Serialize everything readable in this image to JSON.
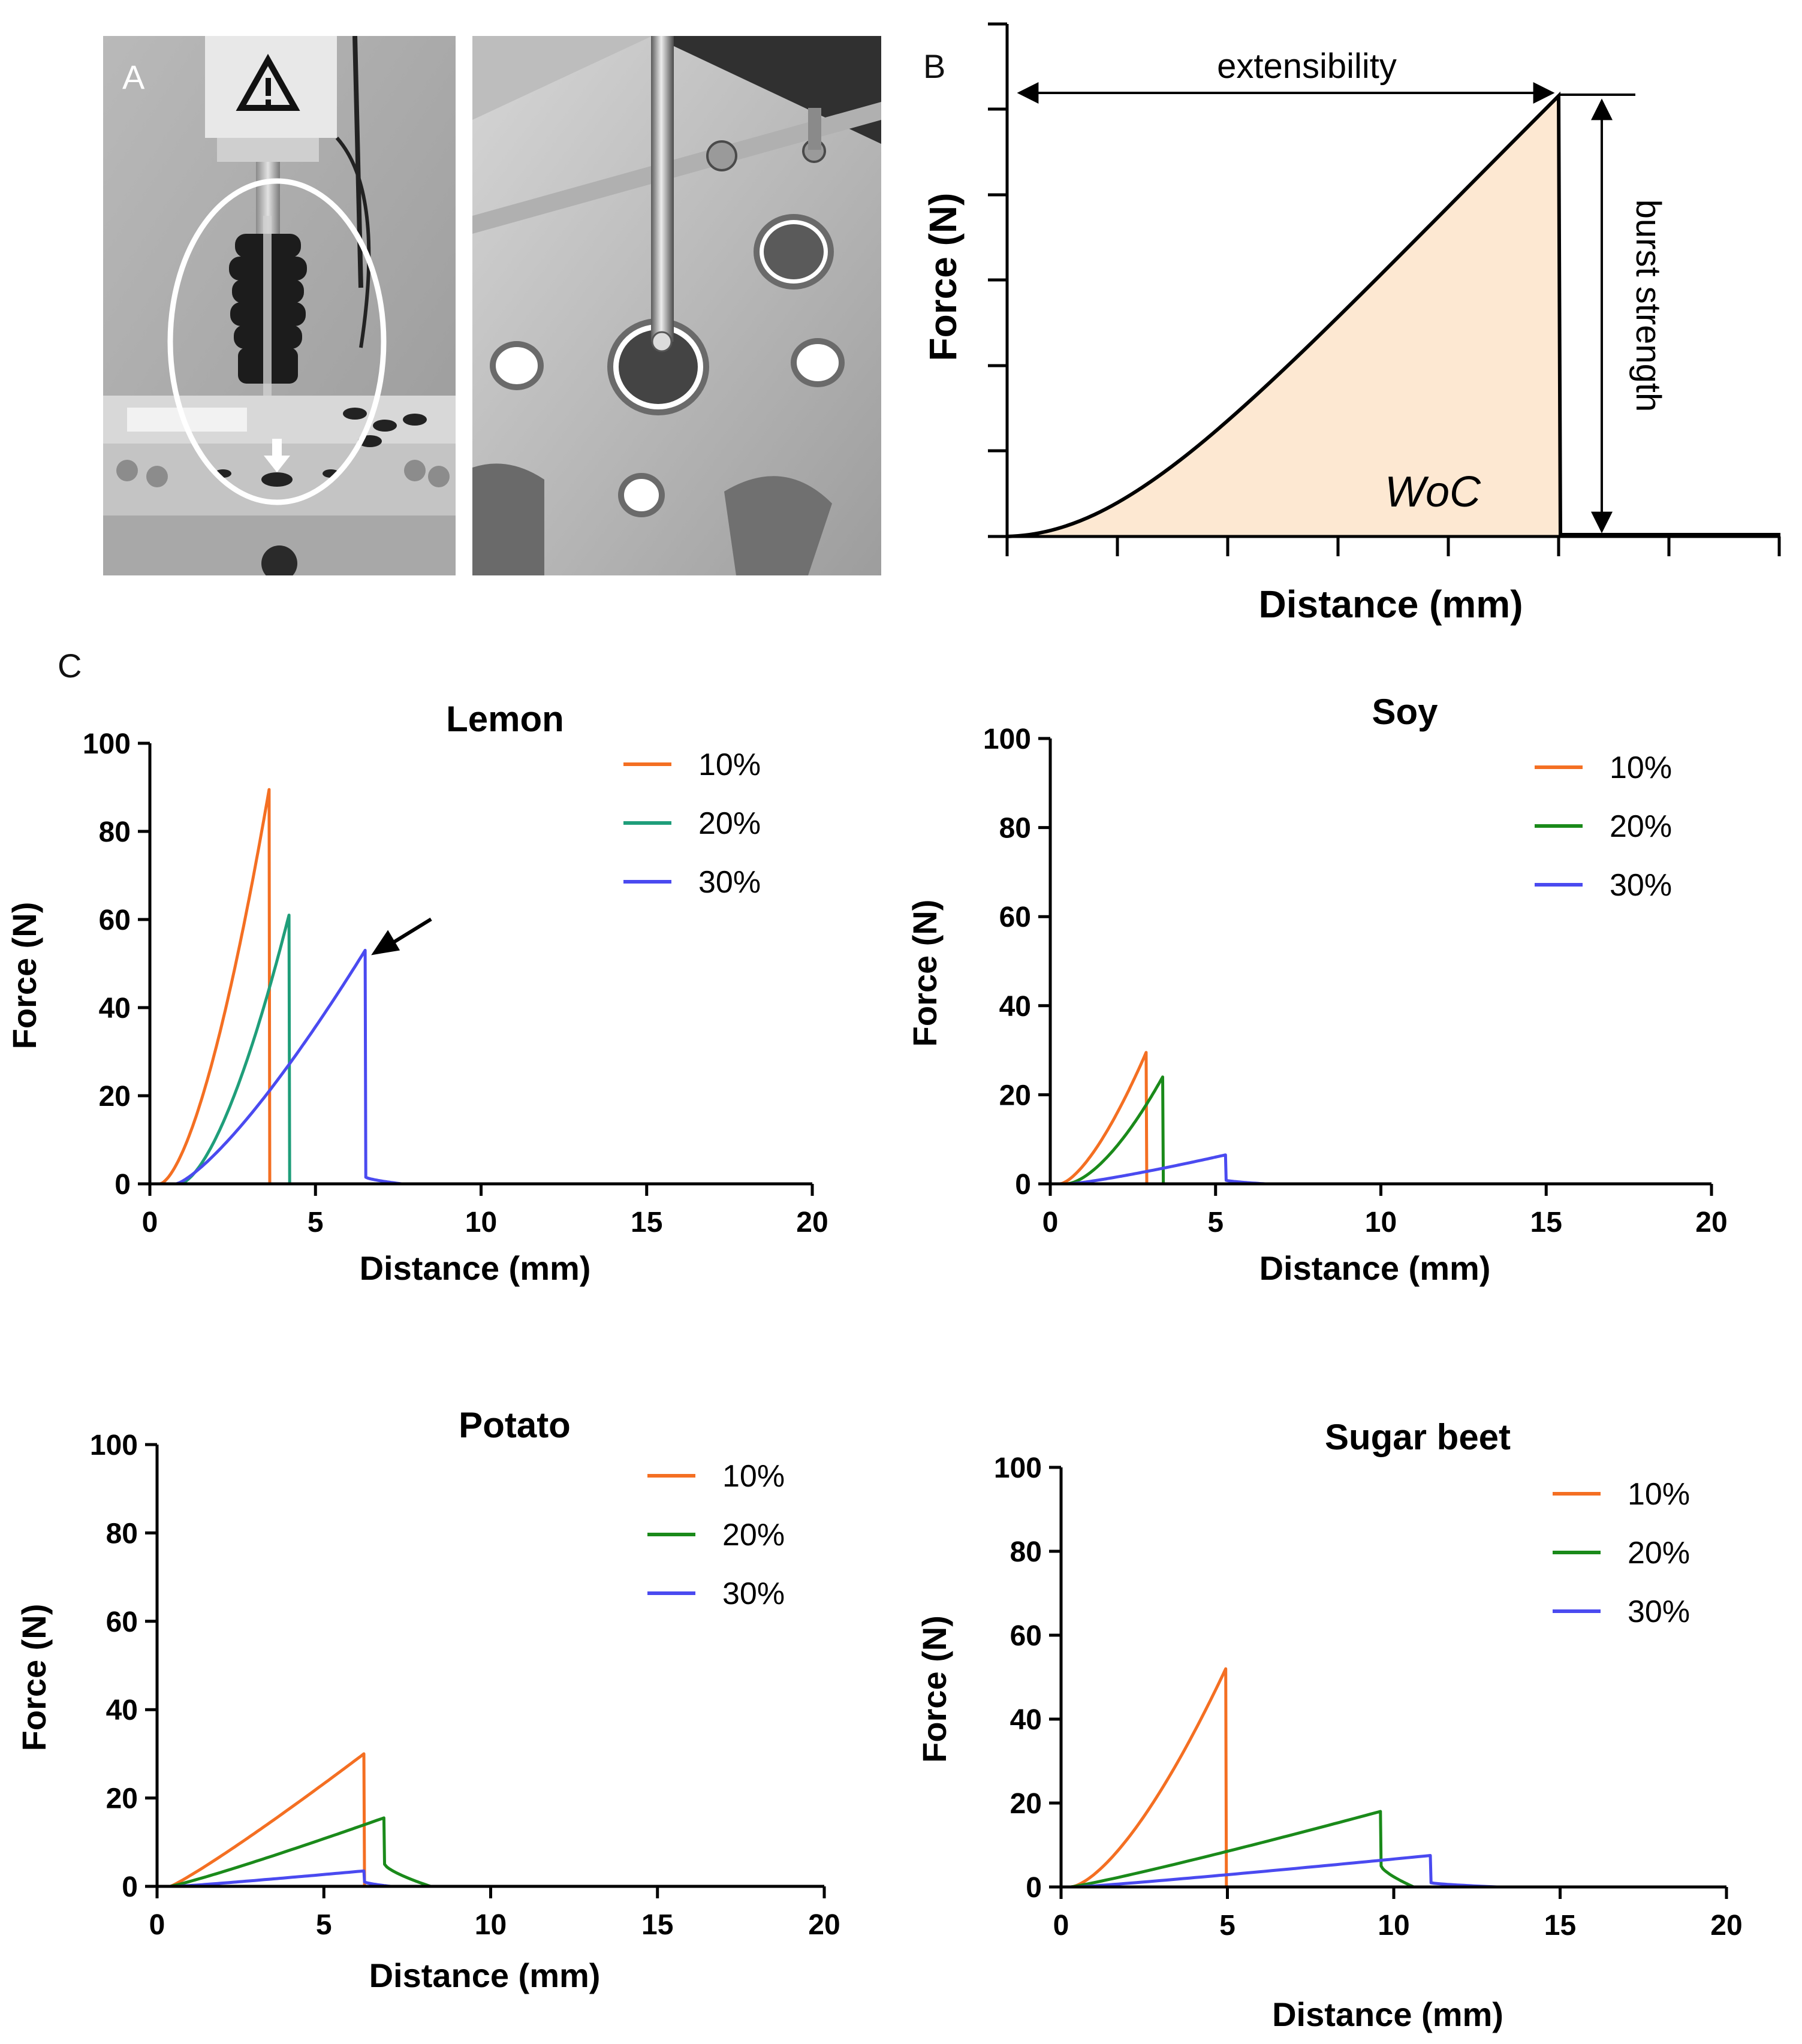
{
  "panels": {
    "a": "A",
    "b": "B",
    "c": "C"
  },
  "panel_b": {
    "type": "schematic-line",
    "ylabel": "Force (N)",
    "xlabel": "Distance (mm)",
    "extensibility_label": "extensibility",
    "burst_label": "burst strength",
    "woc_label": "WoC",
    "fill_color": "#fde8d2",
    "curve_color": "#000000"
  },
  "chart_data": [
    {
      "type": "line",
      "title": "Lemon",
      "xlabel": "Distance (mm)",
      "ylabel": "Force (N)",
      "xlim": [
        0,
        20
      ],
      "ylim": [
        0,
        100
      ],
      "xticks": [
        0,
        5,
        10,
        15,
        20
      ],
      "yticks": [
        0,
        20,
        40,
        60,
        80,
        100
      ],
      "legend_position": "top-right",
      "series": [
        {
          "name": "10%",
          "color": "#f46f22",
          "start": 0,
          "onset": 0.3,
          "peak_x": 3.6,
          "peak_y": 89.5,
          "drop_to": 0,
          "tail_x": 3.8,
          "end_x": 15.2,
          "exponent": 1.6
        },
        {
          "name": "20%",
          "color": "#1f9e7a",
          "start": 0,
          "onset": 0.9,
          "peak_x": 4.2,
          "peak_y": 61,
          "drop_to": 0,
          "tail_x": 4.4,
          "end_x": 8.5,
          "exponent": 1.6
        },
        {
          "name": "30%",
          "color": "#4a4af0",
          "start": 0,
          "onset": 0.8,
          "peak_x": 6.5,
          "peak_y": 53,
          "drop_to": 1.5,
          "tail_x": 7.6,
          "end_x": 8.0,
          "exponent": 1.3
        }
      ],
      "annotation": "arrow pointing to 30% peak"
    },
    {
      "type": "line",
      "title": "Soy",
      "xlabel": "Distance (mm)",
      "ylabel": "Force (N)",
      "xlim": [
        0,
        20
      ],
      "ylim": [
        0,
        100
      ],
      "xticks": [
        0,
        5,
        10,
        15,
        20
      ],
      "yticks": [
        0,
        20,
        40,
        60,
        80,
        100
      ],
      "legend_position": "top-right",
      "series": [
        {
          "name": "10%",
          "color": "#f46f22",
          "start": 0,
          "onset": 0.3,
          "peak_x": 2.9,
          "peak_y": 29.5,
          "drop_to": 0,
          "tail_x": 3.1,
          "end_x": 15.2,
          "exponent": 1.5
        },
        {
          "name": "20%",
          "color": "#1a8a1a",
          "start": 0,
          "onset": 0.5,
          "peak_x": 3.4,
          "peak_y": 24,
          "drop_to": 0,
          "tail_x": 3.6,
          "end_x": 8.0,
          "exponent": 1.6
        },
        {
          "name": "30%",
          "color": "#4a4af0",
          "start": 0,
          "onset": 0.6,
          "peak_x": 5.3,
          "peak_y": 6.5,
          "drop_to": 0.8,
          "tail_x": 6.5,
          "end_x": 7.5,
          "exponent": 1.2
        }
      ]
    },
    {
      "type": "line",
      "title": "Potato",
      "xlabel": "Distance (mm)",
      "ylabel": "Force (N)",
      "xlim": [
        0,
        20
      ],
      "ylim": [
        0,
        100
      ],
      "xticks": [
        0,
        5,
        10,
        15,
        20
      ],
      "yticks": [
        0,
        20,
        40,
        60,
        80,
        100
      ],
      "legend_position": "top-right",
      "series": [
        {
          "name": "10%",
          "color": "#f46f22",
          "start": 0,
          "onset": 0.4,
          "peak_x": 6.2,
          "peak_y": 30,
          "drop_to": 0,
          "tail_x": 6.4,
          "end_x": 15.2,
          "exponent": 1.1
        },
        {
          "name": "20%",
          "color": "#1a8a1a",
          "start": 0,
          "onset": 0.4,
          "peak_x": 6.8,
          "peak_y": 15.5,
          "drop_to": 5,
          "tail_x": 8.2,
          "end_x": 15.0,
          "exponent": 1.1
        },
        {
          "name": "30%",
          "color": "#4a4af0",
          "start": 0,
          "onset": 0.6,
          "peak_x": 6.2,
          "peak_y": 3.5,
          "drop_to": 1.0,
          "tail_x": 7.0,
          "end_x": 14.8,
          "exponent": 1.1
        }
      ]
    },
    {
      "type": "line",
      "title": "Sugar beet",
      "xlabel": "Distance (mm)",
      "ylabel": "Force (N)",
      "xlim": [
        0,
        20
      ],
      "ylim": [
        0,
        100
      ],
      "xticks": [
        0,
        5,
        10,
        15,
        20
      ],
      "yticks": [
        0,
        20,
        40,
        60,
        80,
        100
      ],
      "legend_position": "top-right",
      "series": [
        {
          "name": "10%",
          "color": "#f46f22",
          "start": 0,
          "onset": 0.3,
          "peak_x": 4.95,
          "peak_y": 52,
          "drop_to": 0,
          "tail_x": 5.0,
          "end_x": 15.2,
          "exponent": 1.5
        },
        {
          "name": "20%",
          "color": "#1a8a1a",
          "start": 0,
          "onset": 0.3,
          "peak_x": 9.6,
          "peak_y": 18,
          "drop_to": 5,
          "tail_x": 10.6,
          "end_x": 11.0,
          "exponent": 1.1
        },
        {
          "name": "30%",
          "color": "#4a4af0",
          "start": 0,
          "onset": 0.5,
          "peak_x": 11.1,
          "peak_y": 7.5,
          "drop_to": 1.0,
          "tail_x": 13.1,
          "end_x": 13.2,
          "exponent": 1.1
        }
      ]
    }
  ]
}
